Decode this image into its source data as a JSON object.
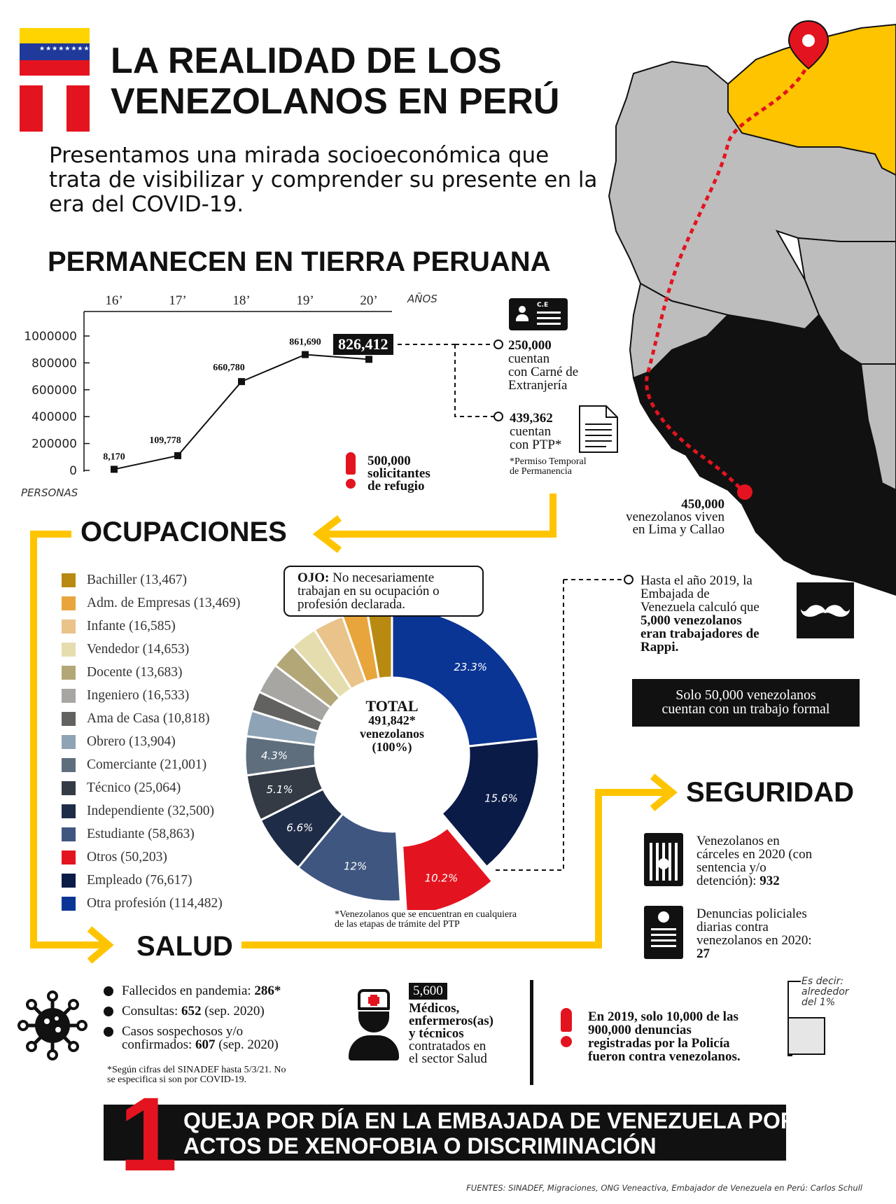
{
  "header": {
    "title_line1": "LA REALIDAD DE LOS",
    "title_line2": "VENEZOLANOS EN PERÚ",
    "subtitle": "Presentamos una mirada socioeconómica que trata de visibilizar y comprender su presente en la era del COVID-19."
  },
  "colors": {
    "yellow": "#FFC400",
    "red": "#E3141F",
    "venezuela_blue": "#1F3A9B",
    "dark_navy": "#0B1B47",
    "map_gray": "#BDBDBD",
    "black": "#111111"
  },
  "permanecen": {
    "title": "PERMANECEN EN TIERRA PERUANA",
    "years_label": "AÑOS",
    "persons_label": "PERSONAS",
    "highlight": "826,412",
    "ce": {
      "value": "250,000",
      "text1": "cuentan",
      "text2": "con Carné de",
      "text3": "Extranjería",
      "icon_label": "C.E"
    },
    "ptp": {
      "value": "439,362",
      "text1": "cuentan",
      "text2": "con PTP*",
      "note1": "*Permiso Temporal",
      "note2": "de Permanencia"
    },
    "refugio": {
      "value": "500,000",
      "text1": "solicitantes",
      "text2": "de refugio"
    }
  },
  "map": {
    "lima_value": "450,000",
    "lima_text1": "venezolanos viven",
    "lima_text2": "en Lima y Callao"
  },
  "ocupaciones": {
    "title": "OCUPACIONES",
    "note_bold": "OJO:",
    "note_rest1": " No necesariamente",
    "note_rest2": "trabajan en su ocupación o",
    "note_rest3": "profesión declarada.",
    "center_line1": "TOTAL",
    "center_line2": "491,842*",
    "center_line3": "venezolanos",
    "center_line4": "(100%)",
    "footnote1": "*Venezolanos que se encuentran en cualquiera",
    "footnote2": "de las etapas de trámite del PTP",
    "rappi_text1": "Hasta el año 2019, la",
    "rappi_text2": "Embajada de",
    "rappi_text3": "Venezuela calculó que",
    "rappi_bold1": "5,000 venezolanos",
    "rappi_bold2": "eran trabajadores de",
    "rappi_bold3": "Rappi.",
    "formal_line1": "Solo 50,000 venezolanos",
    "formal_line2": "cuentan con un trabajo formal"
  },
  "seguridad": {
    "title": "SEGURIDAD",
    "carceles1": "Venezolanos en",
    "carceles2": "cárceles en 2020 (con",
    "carceles3": "sentencia y/o",
    "carceles4": "detención): ",
    "carceles_value": "932",
    "denuncias1": "Denuncias policiales",
    "denuncias2": "diarias contra",
    "denuncias3": "venezolanos en 2020:",
    "denuncias_value": "27",
    "note1": "En 2019, solo 10,000 de las",
    "note2": "900,000 denuncias",
    "note3": "registradas por la Policía",
    "note4": "fueron contra venezolanos.",
    "es_decir1": "Es decir:",
    "es_decir2": "alrededor",
    "es_decir3": "del 1%"
  },
  "salud": {
    "title": "SALUD",
    "fallecidos_label": "Fallecidos en pandemia: ",
    "fallecidos_value": "286*",
    "consultas_label": "Consultas: ",
    "consultas_value": "652",
    "consultas_note": " (sep. 2020)",
    "casos_label1": "Casos sospechosos y/o",
    "casos_label2": "confirmados: ",
    "casos_value": "607",
    "casos_note": " (sep. 2020)",
    "footnote1": "*Según cifras del SINADEF hasta 5/3/21. No",
    "footnote2": "se especifica si son por COVID-19.",
    "medicos_value": "5,600",
    "medicos_bold1": "Médicos,",
    "medicos_bold2": "enfermeros(as)",
    "medicos_bold3": "y técnicos",
    "medicos_text1": "contratados en",
    "medicos_text2": "el sector Salud"
  },
  "banner": {
    "number": "1",
    "line1": "QUEJA POR DÍA EN LA EMBAJADA DE VENEZUELA POR",
    "line2": "ACTOS DE XENOFOBIA O DISCRIMINACIÓN"
  },
  "sources": "FUENTES: SINADEF, Migraciones, ONG Veneactiva, Embajador de Venezuela en Perú: Carlos Schull",
  "chart_data": [
    {
      "type": "line",
      "title": "PERMANECEN EN TIERRA PERUANA",
      "xlabel": "AÑOS",
      "ylabel": "PERSONAS",
      "categories": [
        "16’",
        "17’",
        "18’",
        "19’",
        "20’"
      ],
      "series": [
        {
          "values": [
            8170,
            109778,
            660780,
            861690,
            826412
          ]
        }
      ],
      "value_labels": [
        "8,170",
        "109,778",
        "660,780",
        "861,690",
        "826,412"
      ],
      "ylim": [
        0,
        1000000
      ],
      "yticks": [
        0,
        200000,
        400000,
        600000,
        800000,
        1000000
      ],
      "ytick_labels": [
        "0",
        "200000",
        "400000",
        "600000",
        "800000",
        "1000000"
      ],
      "grid": false
    },
    {
      "type": "pie",
      "title": "OCUPACIONES",
      "legend": "left",
      "categories": [
        "Bachiller (13,467)",
        "Adm. de Empresas (13,469)",
        "Infante (16,585)",
        "Vendedor (14,653)",
        "Docente (13,683)",
        "Ingeniero (16,533)",
        "Ama de Casa (10,818)",
        "Obrero (13,904)",
        "Comerciante (21,001)",
        "Técnico (25,064)",
        "Independiente (32,500)",
        "Estudiante (58,863)",
        "Otros (50,203)",
        "Empleado (76,617)",
        "Otra profesión (114,482)"
      ],
      "values": [
        13467,
        13469,
        16585,
        14653,
        13683,
        16533,
        10818,
        13904,
        21001,
        25064,
        32500,
        58863,
        50203,
        76617,
        114482
      ],
      "colors": [
        "#B88A12",
        "#E8A53B",
        "#E9C38A",
        "#E6DDAE",
        "#B3A777",
        "#A7A6A2",
        "#626260",
        "#8EA3B5",
        "#5E6E7D",
        "#343B45",
        "#1F2C47",
        "#3F5680",
        "#E3141F",
        "#0B1B47",
        "#0A3594"
      ],
      "slice_labels": [
        "",
        "",
        "",
        "",
        "",
        "",
        "",
        "",
        "4.3%",
        "5.1%",
        "6.6%",
        "12%",
        "10.2%",
        "15.6%",
        "23.3%"
      ],
      "exploded": "Otros (50,203)"
    }
  ]
}
